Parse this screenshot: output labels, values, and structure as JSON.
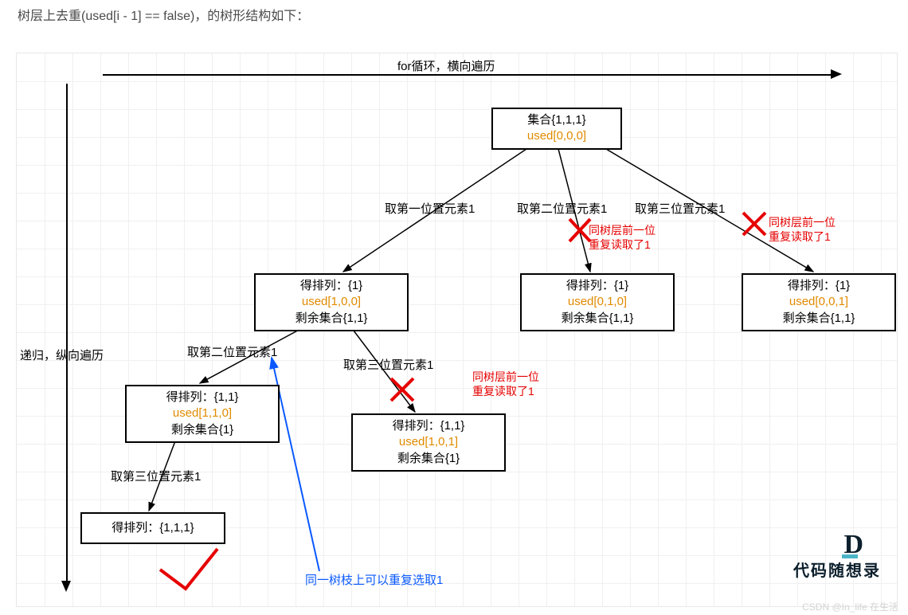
{
  "title": "树层上去重(used[i - 1] == false)，的树形结构如下：",
  "axes": {
    "horizontal_label": "for循环，横向遍历",
    "vertical_label": "递归，纵向遍历"
  },
  "colors": {
    "text": "#4b4b4b",
    "node_border": "#000000",
    "used_text": "#e08a00",
    "red_text": "#e60000",
    "blue_text": "#0a59ff",
    "grid": "#f0f0f0",
    "red_mark": "#e60000",
    "blue_arrow": "#0a59ff",
    "watermark": "#d4d4d4"
  },
  "grid": {
    "step": 35
  },
  "nodes": {
    "root": {
      "line1": "集合{1,1,1}",
      "line2": "used[0,0,0]"
    },
    "l1a": {
      "line1": "得排列：{1}",
      "line2": "used[1,0,0]",
      "line3": "剩余集合{1,1}"
    },
    "l1b": {
      "line1": "得排列：{1}",
      "line2": "used[0,1,0]",
      "line3": "剩余集合{1,1}"
    },
    "l1c": {
      "line1": "得排列：{1}",
      "line2": "used[0,0,1]",
      "line3": "剩余集合{1,1}"
    },
    "l2a": {
      "line1": "得排列：{1,1}",
      "line2": "used[1,1,0]",
      "line3": "剩余集合{1}"
    },
    "l2b": {
      "line1": "得排列：{1,1}",
      "line2": "used[1,0,1]",
      "line3": "剩余集合{1}"
    },
    "leaf": {
      "line1": "得排列：{1,1,1}"
    }
  },
  "edge_labels": {
    "e1": "取第一位置元素1",
    "e2": "取第二位置元素1",
    "e3": "取第三位置元素1",
    "e4": "取第二位置元素1",
    "e5": "取第三位置元素1",
    "e6": "取第三位置元素1"
  },
  "red_notes": {
    "r1a": "同树层前一位",
    "r1b": "重复读取了1",
    "r2a": "同树层前一位",
    "r2b": "重复读取了1",
    "r3a": "同树层前一位",
    "r3b": "重复读取了1"
  },
  "blue_note": "同一树枝上可以重复选取1",
  "logo_text": "代码随想录",
  "watermark": "CSDN @In_life 在生活"
}
